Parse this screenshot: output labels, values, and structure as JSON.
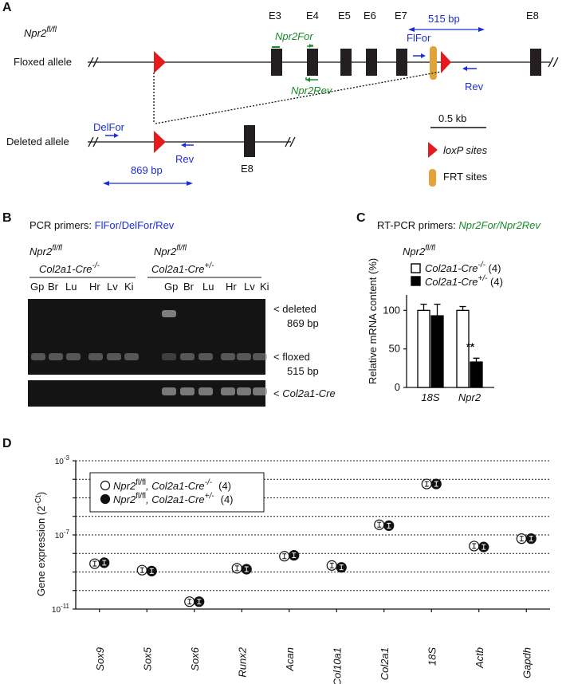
{
  "colors": {
    "blue": "#1c2fd6",
    "green": "#1a8a2a",
    "loxp": "#e41a1c",
    "frt": "#e2a43a",
    "exon": "#231f20"
  },
  "panelA": {
    "letter": "A",
    "genotype_base": "Npr2",
    "genotype_sup": "fl/fl",
    "exons": [
      "E3",
      "E4",
      "E5",
      "E6",
      "E7",
      "E8"
    ],
    "floxed_label": "Floxed allele",
    "deleted_label": "Deleted allele",
    "npr2for": "Npr2For",
    "npr2rev": "Npr2Rev",
    "flfor": "FlFor",
    "rev1": "Rev",
    "bp515": "515 bp",
    "delfor": "DelFor",
    "rev2": "Rev",
    "bp869": "869 bp",
    "e8b": "E8",
    "scale": "0.5 kb",
    "loxp_legend": "loxP sites",
    "frt_legend": "FRT sites"
  },
  "panelB": {
    "letter": "B",
    "primers_prefix": "PCR primers: ",
    "primers": "FlFor/DelFor/Rev",
    "genotype_base": "Npr2",
    "genotype_sup": "fl/fl",
    "ctrl_base": "Col2a1-Cre",
    "ctrl_sup": "-/-",
    "cko_base": "Col2a1-Cre",
    "cko_sup": "+/-",
    "lanes": [
      "Gp",
      "Br",
      "Lu",
      "Hr",
      "Lv",
      "Ki",
      "Gp",
      "Br",
      "Lu",
      "Hr",
      "Lv",
      "Ki"
    ],
    "band_deleted": [
      "deleted",
      "869 bp"
    ],
    "band_floxed": [
      "floxed",
      "515 bp"
    ],
    "band_cre": "Col2a1-Cre"
  },
  "panelC": {
    "letter": "C",
    "title_prefix": "RT-PCR primers: ",
    "title_primers": "Npr2For/Npr2Rev",
    "genotype_base": "Npr2",
    "genotype_sup": "fl/fl",
    "legend": [
      {
        "base": "Col2a1-Cre",
        "sup": "-/-",
        "n": " (4)",
        "fill": "#ffffff"
      },
      {
        "base": "Col2a1-Cre",
        "sup": "+/-",
        "n": " (4)",
        "fill": "#000000"
      }
    ],
    "significance": "**"
  },
  "panelD": {
    "letter": "D",
    "legend": [
      {
        "base": "Npr2",
        "sup1": "fl/fl",
        "mid": ", Col2a1-Cre",
        "sup2": "-/-",
        "n": "(4)"
      },
      {
        "base": "Npr2",
        "sup1": "fl/fl",
        "mid": ", Col2a1-Cre",
        "sup2": "+/-",
        "n": "(4)"
      }
    ]
  },
  "chart_data": [
    {
      "type": "bar",
      "ylabel": "Relative mRNA content (%)",
      "categories": [
        "18S",
        "Npr2"
      ],
      "ylim": [
        0,
        120
      ],
      "yticks": [
        0,
        50,
        100
      ],
      "series": [
        {
          "name": "Col2a1-Cre-/- (4)",
          "values": [
            100,
            100
          ],
          "errors": [
            8,
            5
          ]
        },
        {
          "name": "Col2a1-Cre+/- (4)",
          "values": [
            93,
            33
          ],
          "errors": [
            15,
            5
          ]
        }
      ]
    },
    {
      "type": "scatter",
      "ylabel": "Gene expression (2",
      "ylabel_sup": "-Ct",
      "yscale": "log",
      "ylim_exp": [
        -11,
        -3
      ],
      "ytick_base": "10",
      "yticks_exp": [
        -3,
        -7,
        -11
      ],
      "categories": [
        "Sox9",
        "Sox5",
        "Sox6",
        "Runx2",
        "Acan",
        "Col10a1",
        "Col2a1",
        "18S",
        "Actb",
        "Gapdh"
      ],
      "series": [
        {
          "name": "Npr2fl/fl, Col2a1-Cre-/- (4)",
          "log10_values": [
            -8.55,
            -8.9,
            -10.6,
            -8.8,
            -8.15,
            -8.65,
            -6.45,
            -4.25,
            -7.6,
            -7.2
          ]
        },
        {
          "name": "Npr2fl/fl, Col2a1-Cre+/- (4)",
          "log10_values": [
            -8.5,
            -8.95,
            -10.6,
            -8.85,
            -8.1,
            -8.75,
            -6.5,
            -4.25,
            -7.65,
            -7.2
          ]
        }
      ]
    }
  ]
}
